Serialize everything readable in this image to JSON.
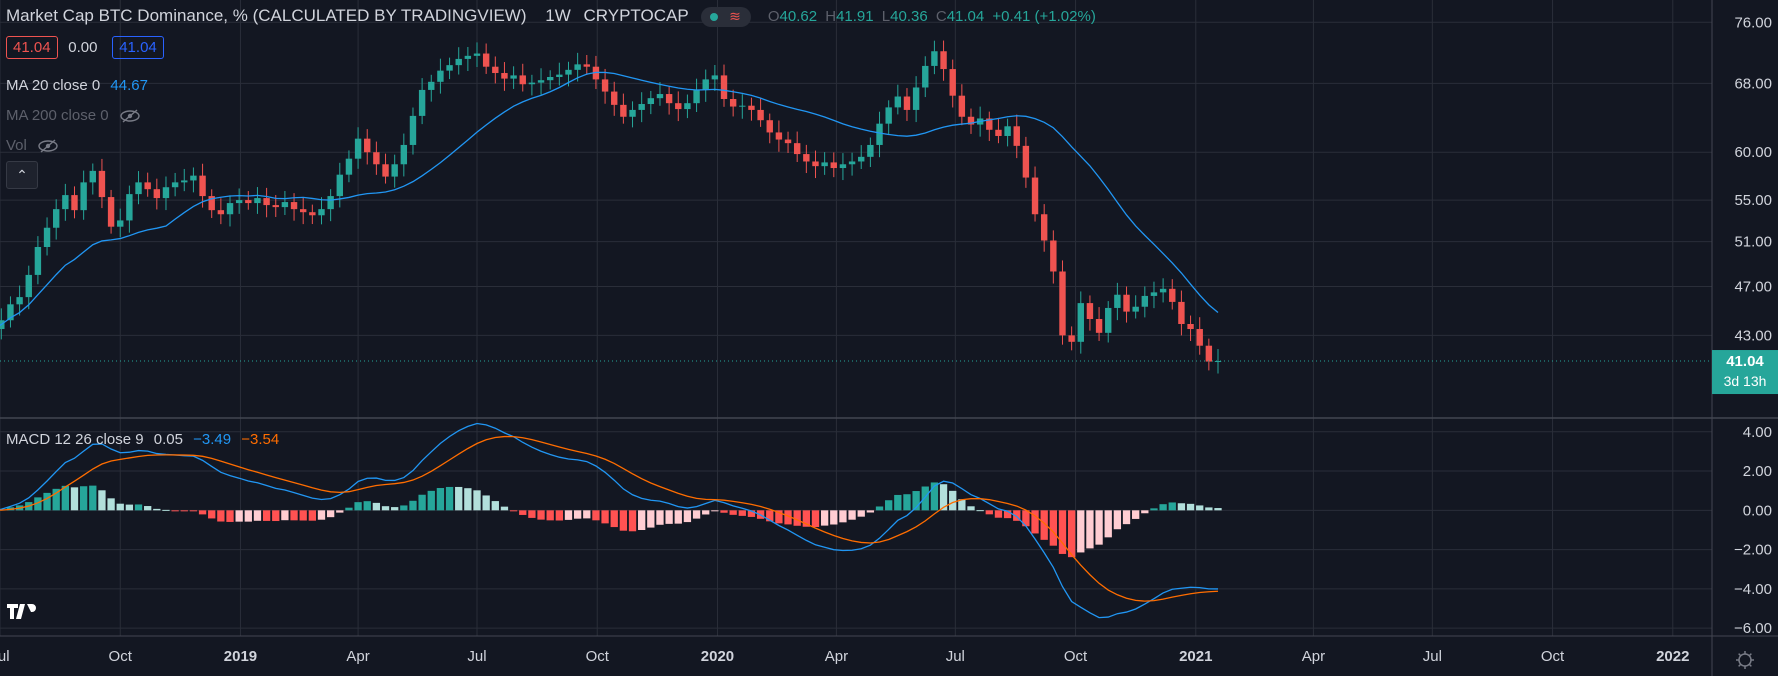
{
  "header": {
    "title": "Market Cap BTC Dominance, % (CALCULATED BY TRADINGVIEW)",
    "interval": "1W",
    "exchange": "CRYPTOCAP",
    "ohlc": {
      "o_label": "O",
      "o": "40.62",
      "h_label": "H",
      "h": "41.91",
      "l_label": "L",
      "l": "40.36",
      "c_label": "C",
      "c": "41.04",
      "change": "+0.41 (+1.02%)"
    },
    "sell_box": "41.04",
    "spread": "0.00",
    "buy_box": "41.04"
  },
  "indicators": {
    "ma20": {
      "label": "MA 20 close 0",
      "value": "44.67"
    },
    "ma200": {
      "label": "MA 200 close 0"
    },
    "vol": {
      "label": "Vol"
    },
    "macd": {
      "label": "MACD 12 26 close 9",
      "hist": "0.05",
      "macd": "−3.49",
      "signal": "−3.54"
    }
  },
  "price_badge": {
    "value": "41.04",
    "countdown": "3d 13h"
  },
  "colors": {
    "up": "#26a69a",
    "down": "#ef5350",
    "ma": "#2196f3",
    "signal": "#ff6d00",
    "bg": "#131722",
    "grid": "#2a2e39"
  },
  "chart_data": [
    {
      "type": "candlestick",
      "title": "Market Cap BTC Dominance, % (CALCULATED BY TRADINGVIEW)",
      "interval": "1W",
      "y_scale": "log",
      "ylim": [
        37,
        78
      ],
      "y_ticks": [
        "76.00",
        "68.00",
        "60.00",
        "55.00",
        "51.00",
        "47.00",
        "43.00"
      ],
      "x_ticks": [
        "Jul",
        "Oct",
        "2019",
        "Apr",
        "Jul",
        "Oct",
        "2020",
        "Apr",
        "Jul",
        "Oct",
        "2021",
        "Apr",
        "Jul",
        "Oct",
        "2022"
      ],
      "x_range": [
        "2018-07-01",
        "2022-01-31"
      ],
      "close": [
        43.5,
        44.2,
        45.5,
        46.1,
        48.0,
        50.5,
        52.3,
        54.1,
        55.5,
        54.0,
        56.8,
        58.0,
        55.3,
        52.4,
        53.0,
        55.6,
        56.8,
        56.1,
        55.2,
        56.3,
        56.8,
        57.0,
        57.5,
        55.4,
        54.0,
        53.6,
        54.7,
        55.0,
        54.7,
        55.2,
        54.5,
        54.3,
        54.8,
        54.1,
        53.8,
        53.5,
        54.1,
        55.4,
        57.6,
        59.3,
        61.5,
        60.0,
        58.7,
        57.4,
        58.7,
        60.8,
        64.1,
        67.2,
        68.2,
        69.6,
        70.3,
        71.1,
        71.5,
        71.8,
        70.1,
        69.3,
        68.6,
        69.0,
        67.9,
        68.1,
        68.4,
        68.8,
        69.1,
        69.7,
        70.4,
        70.1,
        68.5,
        67.0,
        65.4,
        64.0,
        64.8,
        65.5,
        66.2,
        66.7,
        65.6,
        64.9,
        65.6,
        67.2,
        68.5,
        69.0,
        66.1,
        65.2,
        65.3,
        64.8,
        63.6,
        62.2,
        61.4,
        61.0,
        59.8,
        59.0,
        58.5,
        58.9,
        58.3,
        58.7,
        59.0,
        59.5,
        60.8,
        63.2,
        65.1,
        66.4,
        64.8,
        67.5,
        70.2,
        72.1,
        69.8,
        66.5,
        64.0,
        63.1,
        63.8,
        62.5,
        61.8,
        62.9,
        60.7,
        57.3,
        53.6,
        51.1,
        48.3,
        43.0,
        42.5,
        45.6,
        44.3,
        43.2,
        45.2,
        46.3,
        44.9,
        45.3,
        46.2,
        46.5,
        46.8,
        45.7,
        43.9,
        43.5,
        42.2,
        41.0,
        41.04
      ],
      "ma20_value": 44.67
    },
    {
      "type": "macd",
      "title": "MACD 12 26 close 9",
      "ylim": [
        -6.4,
        4.6
      ],
      "y_ticks": [
        "4.00",
        "2.00",
        "0.00",
        "−2.00",
        "−4.00",
        "−6.00"
      ],
      "last": {
        "histogram": 0.05,
        "macd": -3.49,
        "signal": -3.54
      }
    }
  ]
}
